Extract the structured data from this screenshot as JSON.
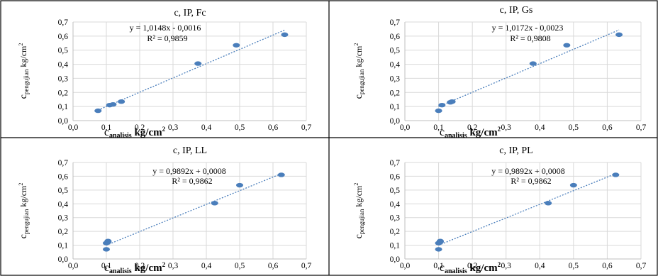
{
  "chart_data": [
    {
      "type": "scatter",
      "title": "c, IP, Fc",
      "xlabel_main": "c",
      "xlabel_sub": "analisis",
      "xlabel_unit": "kg/cm",
      "xlabel_unit_sup": "2",
      "ylabel_main": "c",
      "ylabel_sub": "pengujian",
      "ylabel_unit": "kg/cm",
      "ylabel_unit_sup": "2",
      "xlim": [
        0,
        0.7
      ],
      "ylim": [
        0,
        0.7
      ],
      "xticks": [
        "0,0",
        "0,1",
        "0,2",
        "0,3",
        "0,4",
        "0,5",
        "0,6",
        "0,7"
      ],
      "yticks": [
        "0,0",
        "0,1",
        "0,2",
        "0,3",
        "0,4",
        "0,5",
        "0,6",
        "0,7"
      ],
      "grid": true,
      "points": [
        [
          0.075,
          0.07
        ],
        [
          0.11,
          0.11
        ],
        [
          0.12,
          0.115
        ],
        [
          0.145,
          0.135
        ],
        [
          0.375,
          0.405
        ],
        [
          0.49,
          0.535
        ],
        [
          0.635,
          0.61
        ]
      ],
      "trendline": {
        "slope": 1.0148,
        "intercept": -0.0016,
        "xrange": [
          0.075,
          0.635
        ]
      },
      "equation": "y = 1,0148x - 0,0016",
      "r2": "R² = 0,9859",
      "color": "#4a7ebb"
    },
    {
      "type": "scatter",
      "title": "c, IP, Gs",
      "xlabel_main": "c",
      "xlabel_sub": "analisis",
      "xlabel_unit": "kg/cm",
      "xlabel_unit_sup": "2",
      "ylabel_main": "c",
      "ylabel_sub": "pengujian",
      "ylabel_unit": "kg/cm",
      "ylabel_unit_sup": "2",
      "xlim": [
        0,
        0.7
      ],
      "ylim": [
        0,
        0.7
      ],
      "xticks": [
        "0,0",
        "0,1",
        "0,2",
        "0,3",
        "0,4",
        "0,5",
        "0,6",
        "0,7"
      ],
      "yticks": [
        "0,0",
        "0,1",
        "0,2",
        "0,3",
        "0,4",
        "0,5",
        "0,6",
        "0,7"
      ],
      "grid": true,
      "points": [
        [
          0.1,
          0.07
        ],
        [
          0.11,
          0.11
        ],
        [
          0.135,
          0.13
        ],
        [
          0.14,
          0.135
        ],
        [
          0.38,
          0.405
        ],
        [
          0.48,
          0.535
        ],
        [
          0.635,
          0.61
        ]
      ],
      "trendline": {
        "slope": 1.0172,
        "intercept": -0.0023,
        "xrange": [
          0.1,
          0.635
        ]
      },
      "equation": "y = 1,0172x - 0,0023",
      "r2": "R² = 0,9808",
      "color": "#4a7ebb"
    },
    {
      "type": "scatter",
      "title": "c, IP, LL",
      "xlabel_main": "c",
      "xlabel_sub": "analisis",
      "xlabel_unit": "kg/cm",
      "xlabel_unit_sup": "2",
      "ylabel_main": "c",
      "ylabel_sub": "pengujian",
      "ylabel_unit": "kg/cm",
      "ylabel_unit_sup": "2",
      "xlim": [
        0,
        0.7
      ],
      "ylim": [
        0,
        0.7
      ],
      "xticks": [
        "0,0",
        "0,1",
        "0,2",
        "0,3",
        "0,4",
        "0,5",
        "0,6",
        "0,7"
      ],
      "yticks": [
        "0,0",
        "0,1",
        "0,2",
        "0,3",
        "0,4",
        "0,5",
        "0,6",
        "0,7"
      ],
      "grid": true,
      "points": [
        [
          0.1,
          0.07
        ],
        [
          0.1,
          0.115
        ],
        [
          0.105,
          0.125
        ],
        [
          0.105,
          0.13
        ],
        [
          0.425,
          0.405
        ],
        [
          0.5,
          0.535
        ],
        [
          0.625,
          0.61
        ]
      ],
      "trendline": {
        "slope": 0.9892,
        "intercept": 0.0008,
        "xrange": [
          0.1,
          0.625
        ]
      },
      "equation": "y = 0,9892x + 0,0008",
      "r2": "R² = 0,9862",
      "color": "#4a7ebb"
    },
    {
      "type": "scatter",
      "title": "c, IP, PL",
      "xlabel_main": "c",
      "xlabel_sub": "analisis",
      "xlabel_unit": "kg/cm",
      "xlabel_unit_sup": "2",
      "ylabel_main": "c",
      "ylabel_sub": "pengujian",
      "ylabel_unit": "kg/cm",
      "ylabel_unit_sup": "2",
      "xlim": [
        0,
        0.7
      ],
      "ylim": [
        0,
        0.7
      ],
      "xticks": [
        "0,0",
        "0,1",
        "0,2",
        "0,3",
        "0,4",
        "0,5",
        "0,6",
        "0,7"
      ],
      "yticks": [
        "0,0",
        "0,1",
        "0,2",
        "0,3",
        "0,4",
        "0,5",
        "0,6",
        "0,7"
      ],
      "grid": true,
      "points": [
        [
          0.1,
          0.07
        ],
        [
          0.1,
          0.115
        ],
        [
          0.105,
          0.125
        ],
        [
          0.105,
          0.13
        ],
        [
          0.425,
          0.405
        ],
        [
          0.5,
          0.535
        ],
        [
          0.625,
          0.61
        ]
      ],
      "trendline": {
        "slope": 0.9892,
        "intercept": 0.0008,
        "xrange": [
          0.1,
          0.625
        ]
      },
      "equation": "y = 0,9892x + 0,0008",
      "r2": "R² = 0,9862",
      "color": "#4a7ebb"
    }
  ]
}
